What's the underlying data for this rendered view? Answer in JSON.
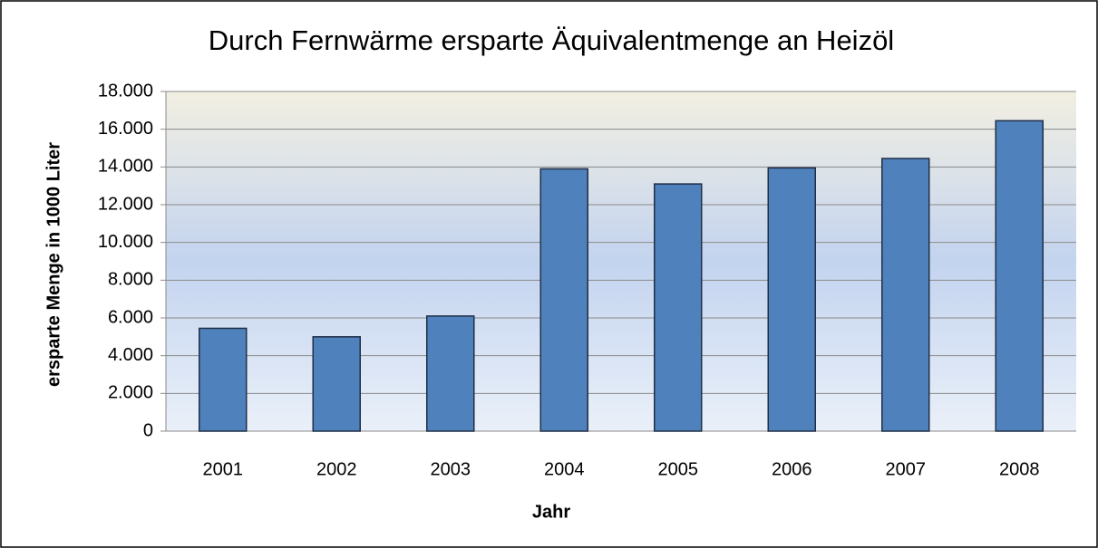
{
  "chart_data": {
    "type": "bar",
    "title": "Durch Fernwärme ersparte Äquivalentmenge an Heizöl",
    "x_label": "Jahr",
    "y_label": "ersparte Menge in 1000 Liter",
    "categories": [
      "2001",
      "2002",
      "2003",
      "2004",
      "2005",
      "2006",
      "2007",
      "2008"
    ],
    "values": [
      5450,
      5000,
      6100,
      13900,
      13100,
      13950,
      14450,
      16450
    ],
    "color": "#4f81bd",
    "ylim": [
      0,
      18000
    ],
    "yticks": [
      0,
      {
        "value": 2000,
        "label": "2.000"
      },
      {
        "value": 4000,
        "label": "4.000"
      },
      {
        "value": 6000,
        "label": "6.000"
      },
      {
        "value": 8000,
        "label": "8.000"
      },
      {
        "value": 10000,
        "label": "10.000"
      },
      {
        "value": 12000,
        "label": "12.000"
      },
      {
        "value": 14000,
        "label": "14.000"
      },
      {
        "value": 16000,
        "label": "16.000"
      },
      {
        "value": 18000,
        "label": "18.000"
      }
    ],
    "grid": true
  }
}
